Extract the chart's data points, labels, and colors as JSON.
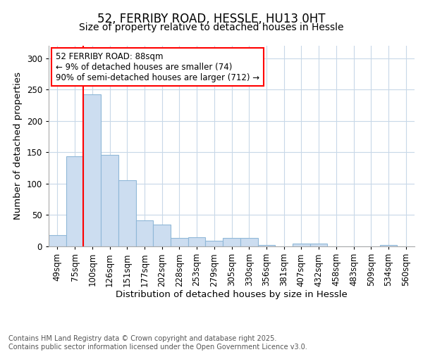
{
  "title1": "52, FERRIBY ROAD, HESSLE, HU13 0HT",
  "title2": "Size of property relative to detached houses in Hessle",
  "xlabel": "Distribution of detached houses by size in Hessle",
  "ylabel": "Number of detached properties",
  "categories": [
    "49sqm",
    "75sqm",
    "100sqm",
    "126sqm",
    "151sqm",
    "177sqm",
    "202sqm",
    "228sqm",
    "253sqm",
    "279sqm",
    "305sqm",
    "330sqm",
    "356sqm",
    "381sqm",
    "407sqm",
    "432sqm",
    "458sqm",
    "483sqm",
    "509sqm",
    "534sqm",
    "560sqm"
  ],
  "values": [
    18,
    144,
    243,
    146,
    106,
    42,
    35,
    13,
    15,
    9,
    13,
    13,
    2,
    0,
    4,
    4,
    0,
    0,
    0,
    2,
    0
  ],
  "bar_color": "#ccddf0",
  "bar_edge_color": "#90b8d8",
  "vline_color": "red",
  "vline_x": 1.5,
  "annotation_text": "52 FERRIBY ROAD: 88sqm\n← 9% of detached houses are smaller (74)\n90% of semi-detached houses are larger (712) →",
  "annotation_box_color": "white",
  "annotation_box_edge_color": "red",
  "annotation_fontsize": 8.5,
  "ylim": [
    0,
    320
  ],
  "yticks": [
    0,
    50,
    100,
    150,
    200,
    250,
    300
  ],
  "footer": "Contains HM Land Registry data © Crown copyright and database right 2025.\nContains public sector information licensed under the Open Government Licence v3.0.",
  "background_color": "white",
  "plot_background_color": "white",
  "grid_color": "#c8d8e8",
  "title_fontsize": 12,
  "subtitle_fontsize": 10,
  "axis_label_fontsize": 9.5,
  "tick_fontsize": 8.5,
  "footer_fontsize": 7
}
